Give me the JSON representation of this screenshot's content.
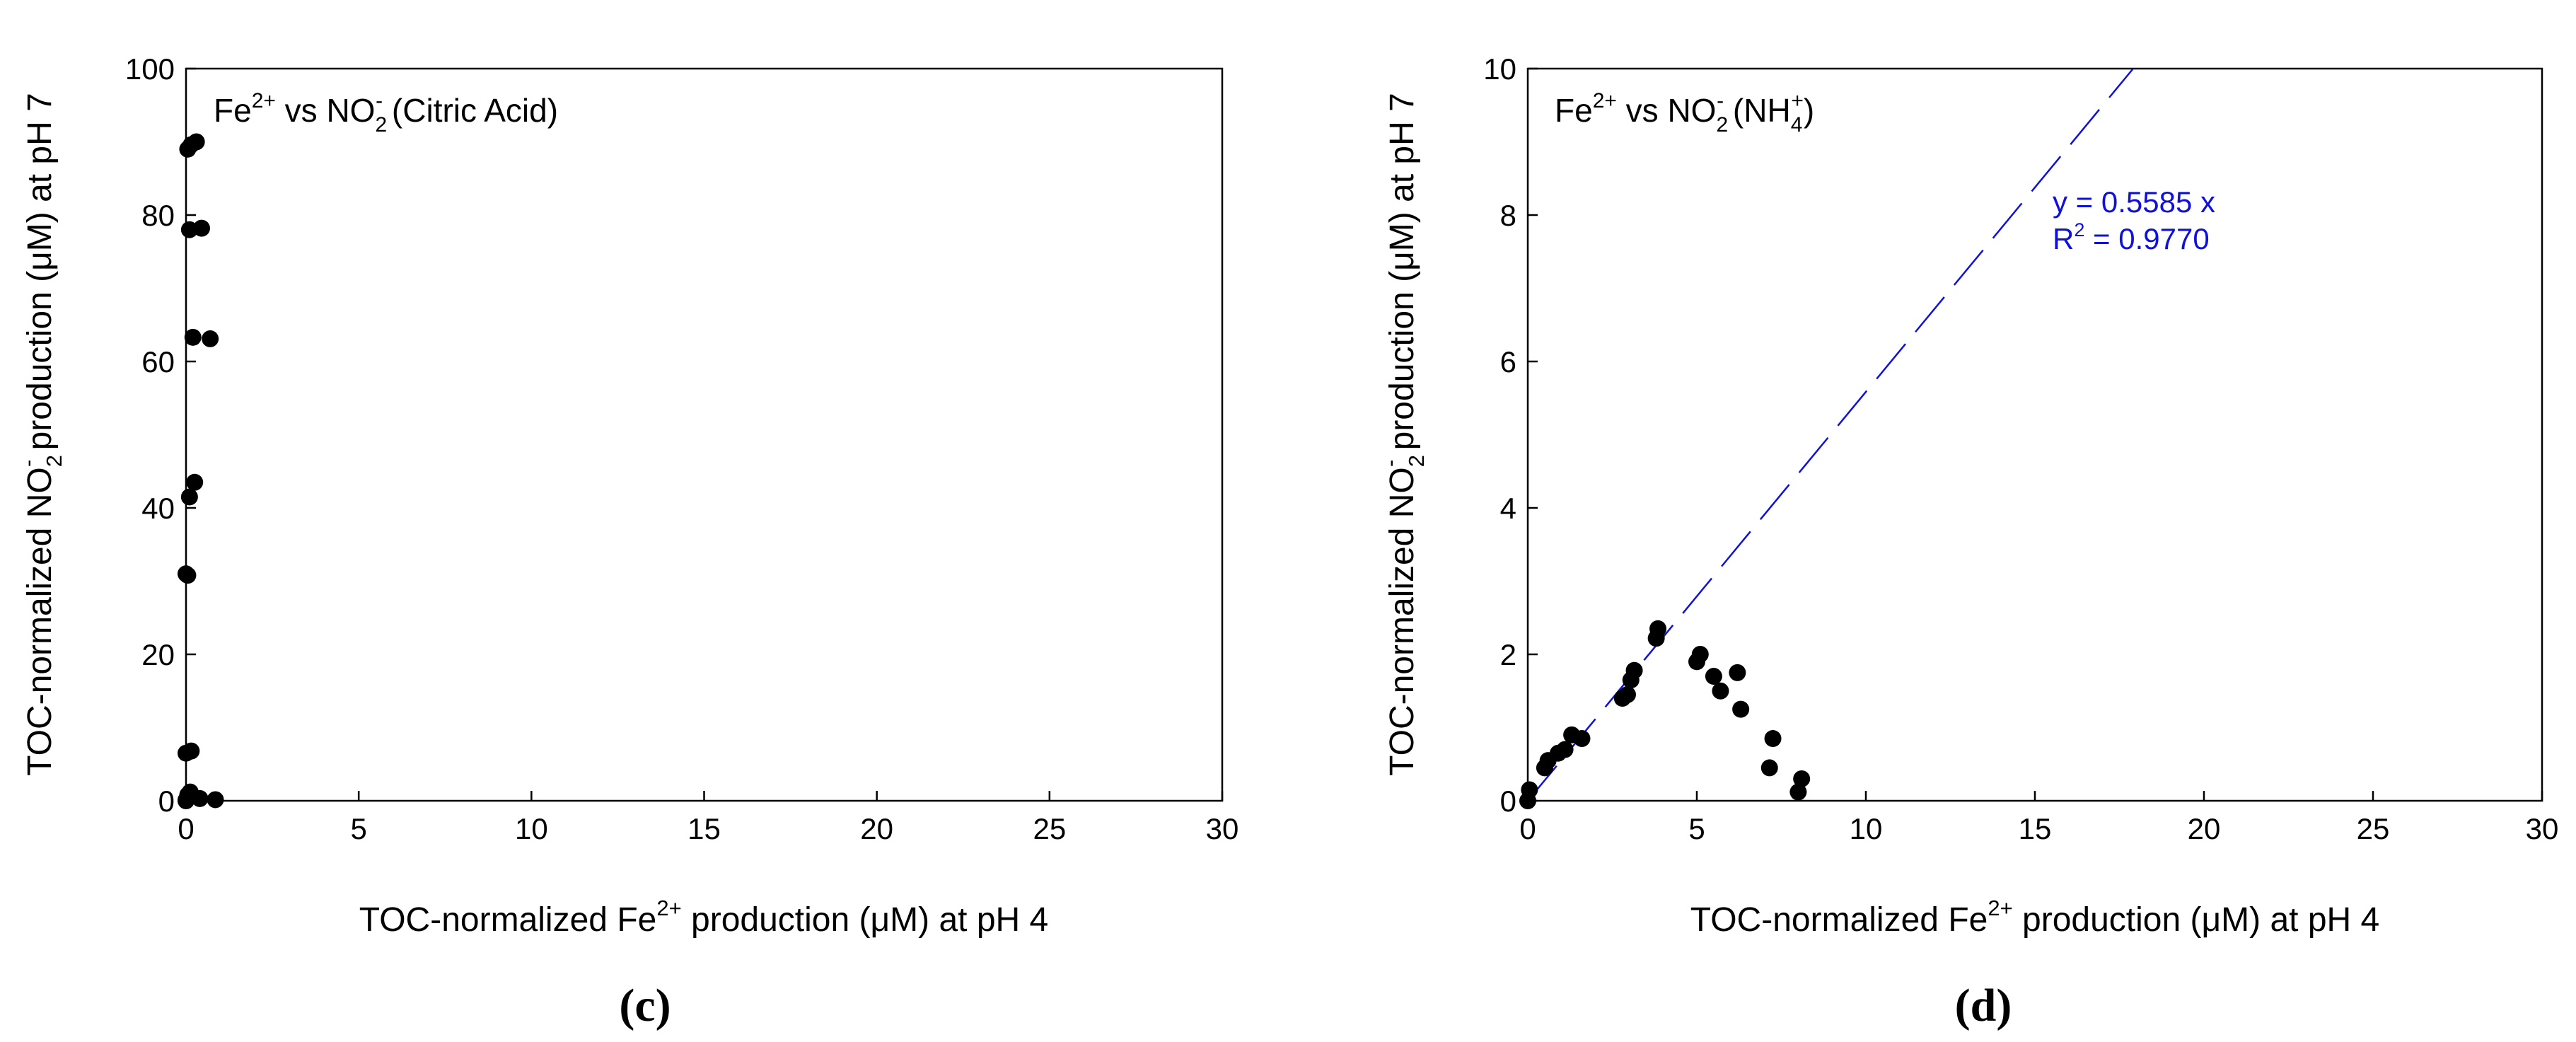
{
  "chart_data": [
    {
      "type": "scatter",
      "panel_label": "(c)",
      "title": {
        "main": "Fe",
        "sup1": "2+",
        "mid": " vs NO",
        "sub": "2",
        "sup2": "-",
        "rest": " (Citric Acid)"
      },
      "xlabel": {
        "pre": "TOC-normalized Fe",
        "sup": "2+",
        "post": " production (μM) at pH 4"
      },
      "ylabel": {
        "pre": "TOC-normalized NO",
        "sub": "2",
        "sup": "-",
        "post": " production (μM) at pH 7"
      },
      "xlim": [
        0,
        30
      ],
      "ylim": [
        0,
        100
      ],
      "xticks": [
        0,
        5,
        10,
        15,
        20,
        25,
        30
      ],
      "yticks": [
        0,
        20,
        40,
        60,
        80,
        100
      ],
      "tick_labels_x": [
        "0",
        "5",
        "10",
        "15",
        "20",
        "25",
        "30"
      ],
      "tick_labels_y": [
        "0",
        "20",
        "40",
        "60",
        "80",
        "100"
      ],
      "points": [
        [
          0.05,
          89.0
        ],
        [
          0.15,
          89.6
        ],
        [
          0.3,
          90.0
        ],
        [
          0.1,
          78.0
        ],
        [
          0.45,
          78.2
        ],
        [
          0.2,
          63.3
        ],
        [
          0.7,
          63.1
        ],
        [
          0.25,
          43.5
        ],
        [
          0.1,
          41.5
        ],
        [
          0.0,
          31.0
        ],
        [
          0.05,
          30.8
        ],
        [
          0.0,
          6.5
        ],
        [
          0.15,
          6.8
        ],
        [
          0.0,
          0.1
        ],
        [
          0.05,
          0.8
        ],
        [
          0.12,
          1.2
        ],
        [
          0.0,
          0.0
        ],
        [
          0.4,
          0.3
        ],
        [
          0.85,
          0.15
        ]
      ]
    },
    {
      "type": "scatter",
      "panel_label": "(d)",
      "title": {
        "main": "Fe",
        "sup1": "2+",
        "mid": " vs NO",
        "sub": "2",
        "sup2": "-",
        "rest": " (NH",
        "sub2": "4",
        "sup3": "+",
        "end": ")"
      },
      "xlabel": {
        "pre": "TOC-normalized Fe",
        "sup": "2+",
        "post": " production (μM) at pH 4"
      },
      "ylabel": {
        "pre": "TOC-normalized NO",
        "sub": "2",
        "sup": "-",
        "post": " production (μM) at pH 7"
      },
      "xlim": [
        0,
        30
      ],
      "ylim": [
        0,
        10
      ],
      "xticks": [
        0,
        5,
        10,
        15,
        20,
        25,
        30
      ],
      "yticks": [
        0,
        2,
        4,
        6,
        8,
        10
      ],
      "tick_labels_x": [
        "0",
        "5",
        "10",
        "15",
        "20",
        "25",
        "30"
      ],
      "tick_labels_y": [
        "0",
        "2",
        "4",
        "6",
        "8",
        "10"
      ],
      "points": [
        [
          0.0,
          0.0
        ],
        [
          0.05,
          0.15
        ],
        [
          0.5,
          0.45
        ],
        [
          0.6,
          0.55
        ],
        [
          0.9,
          0.65
        ],
        [
          1.1,
          0.7
        ],
        [
          1.3,
          0.9
        ],
        [
          1.6,
          0.85
        ],
        [
          2.8,
          1.4
        ],
        [
          2.95,
          1.45
        ],
        [
          3.05,
          1.65
        ],
        [
          3.15,
          1.78
        ],
        [
          3.8,
          2.22
        ],
        [
          3.85,
          2.35
        ],
        [
          5.0,
          1.9
        ],
        [
          5.1,
          2.0
        ],
        [
          5.5,
          1.7
        ],
        [
          5.7,
          1.5
        ],
        [
          6.2,
          1.75
        ],
        [
          6.3,
          1.25
        ],
        [
          7.15,
          0.45
        ],
        [
          7.25,
          0.85
        ],
        [
          8.0,
          0.12
        ],
        [
          8.1,
          0.3
        ]
      ],
      "fit": {
        "slope": 0.5585,
        "equation_label": "y = 0.5585 x",
        "r2_pre": "R",
        "r2_sup": "2",
        "r2_post": " = 0.9770",
        "color": "#1010dd"
      }
    }
  ],
  "colors": {
    "axis": "#000000",
    "point": "#000000",
    "fit": "#1010dd"
  }
}
